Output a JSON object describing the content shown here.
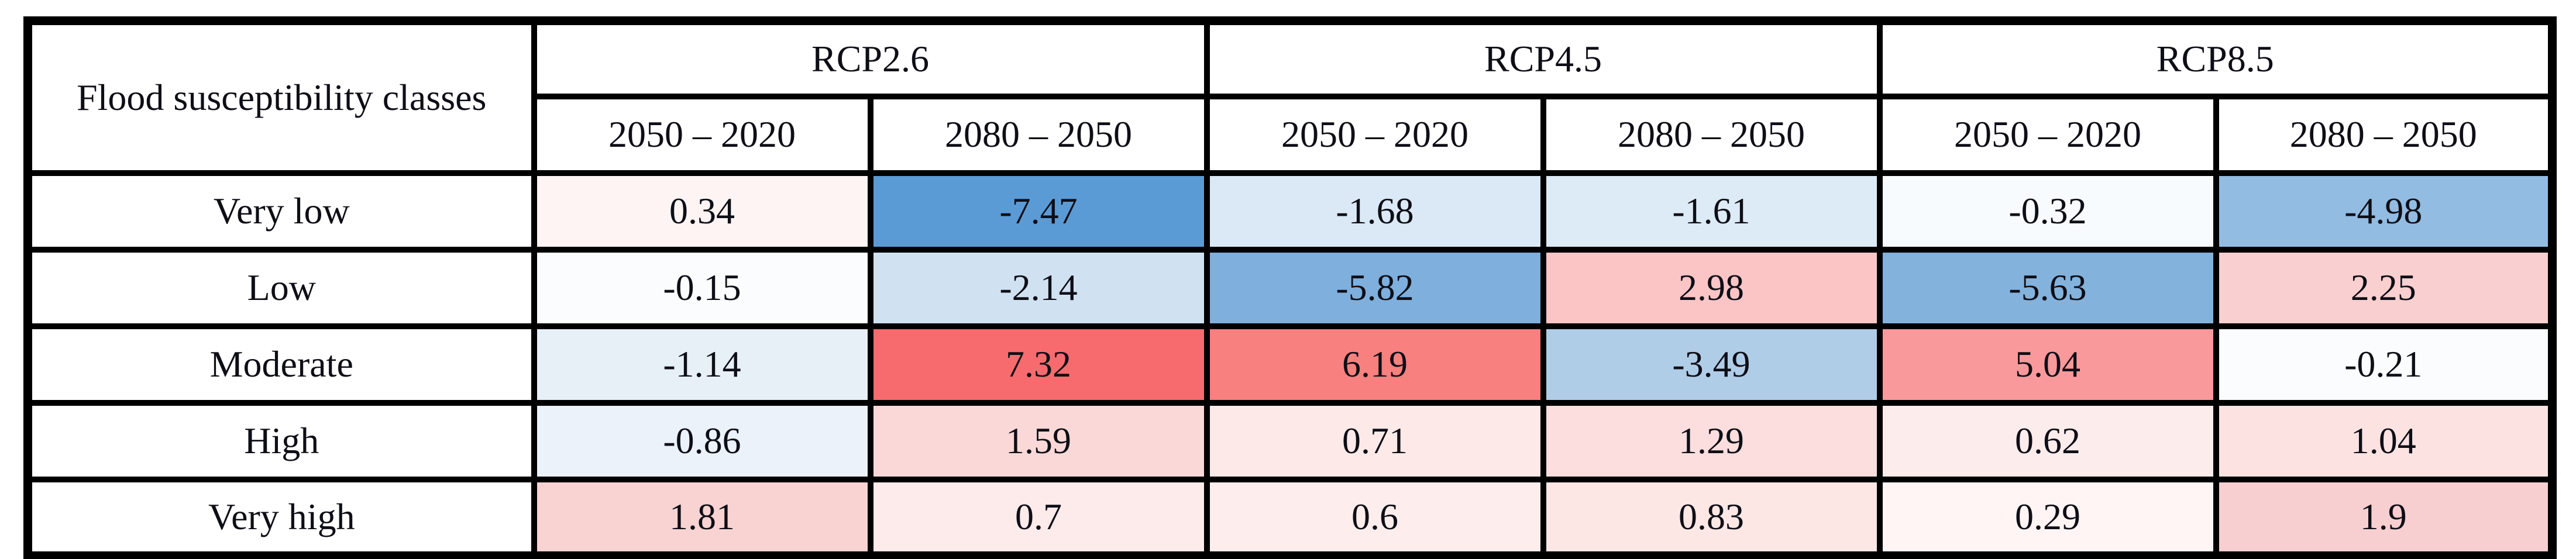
{
  "table": {
    "corner_label": "Flood susceptibility classes",
    "scenarios": [
      "RCP2.6",
      "RCP4.5",
      "RCP8.5"
    ],
    "periods": [
      "2050 – 2020",
      "2080 – 2050",
      "2050 – 2020",
      "2080 – 2050",
      "2050 – 2020",
      "2080 – 2050"
    ]
  },
  "colors": {
    "border": "#000000",
    "text": "#0e0e16",
    "background": "#ffffff",
    "positive_max_red": "#f76b6e",
    "negative_max_blue": "#5b9bd5",
    "neutral_mid": "#ffffff"
  },
  "chart_data": {
    "type": "heatmap",
    "row_header": "Flood susceptibility classes",
    "column_groups": [
      "RCP2.6",
      "RCP4.5",
      "RCP8.5"
    ],
    "columns": [
      "RCP2.6 / 2050 – 2020",
      "RCP2.6 / 2080 – 2050",
      "RCP4.5 / 2050 – 2020",
      "RCP4.5 / 2080 – 2050",
      "RCP8.5 / 2050 – 2020",
      "RCP8.5 / 2080 – 2050"
    ],
    "rows": [
      {
        "label": "Very low",
        "values": [
          "0.34",
          "-7.47",
          "-1.68",
          "-1.61",
          "-0.32",
          "-4.98"
        ],
        "colors": [
          "#fdf4f3",
          "#5b9bd5",
          "#dbe9f6",
          "#dcebf6",
          "#f8fbfd",
          "#92bce2"
        ]
      },
      {
        "label": "Low",
        "values": [
          "-0.15",
          "-2.14",
          "-5.82",
          "2.98",
          "-5.63",
          "2.25"
        ],
        "colors": [
          "#fbfcfe",
          "#d0e2f1",
          "#7fafdc",
          "#fbc5c6",
          "#83b2dd",
          "#f9cfcf"
        ]
      },
      {
        "label": "Moderate",
        "values": [
          "-1.14",
          "7.32",
          "6.19",
          "-3.49",
          "5.04",
          "-0.21"
        ],
        "colors": [
          "#e7eff7",
          "#f76b6e",
          "#f8807f",
          "#b0cde8",
          "#f9999b",
          "#fafcfd"
        ]
      },
      {
        "label": "High",
        "values": [
          "-0.86",
          "1.59",
          "0.71",
          "1.29",
          "0.62",
          "1.04"
        ],
        "colors": [
          "#ebf2f9",
          "#f9d8d7",
          "#fdeae8",
          "#fbdedd",
          "#fdecec",
          "#fce3e2"
        ]
      },
      {
        "label": "Very high",
        "values": [
          "1.81",
          "0.7",
          "0.6",
          "0.83",
          "0.29",
          "1.9"
        ],
        "colors": [
          "#f8d3d2",
          "#fdeaea",
          "#fdedec",
          "#fce7e5",
          "#fef5f4",
          "#f7cfd0"
        ]
      }
    ],
    "color_scale": {
      "type": "diverging",
      "min_color": "#5b9bd5",
      "mid_color": "#ffffff",
      "max_color": "#f76b6e",
      "domain": [
        -7.47,
        0,
        7.32
      ]
    },
    "legend": "none",
    "grid": "thick black borders on all cells"
  }
}
